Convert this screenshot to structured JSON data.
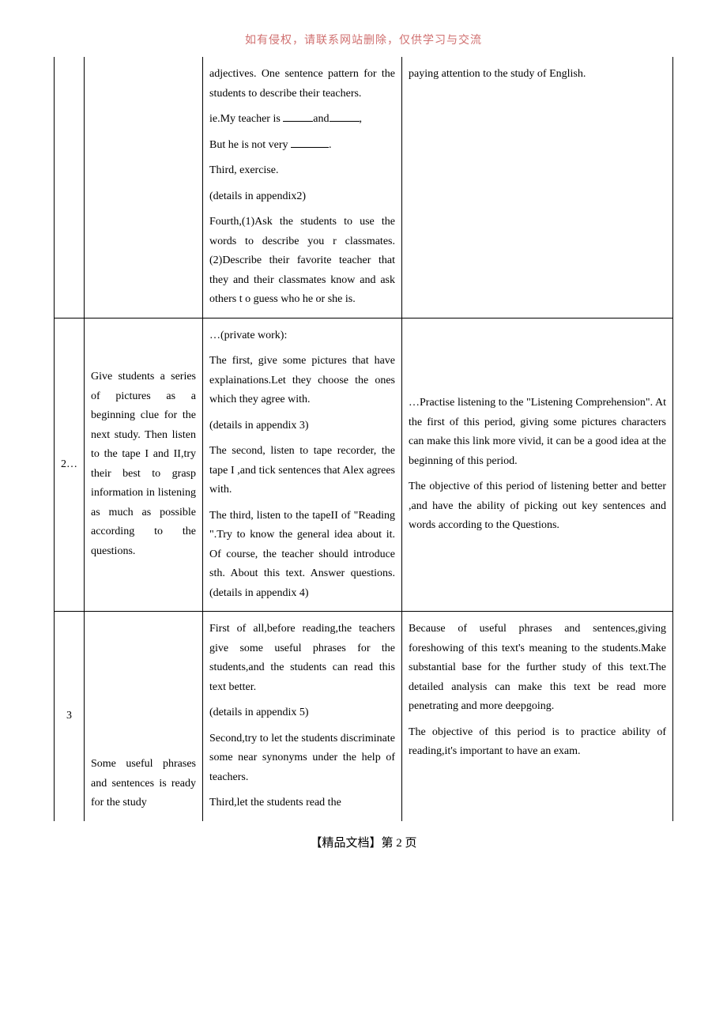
{
  "header_note": "如有侵权，请联系网站删除，仅供学习与交流",
  "footer": "【精品文档】第 2 页",
  "rows": [
    {
      "num": "",
      "left": "",
      "mid_paras": [
        "adjectives. One sentence pattern for the students to describe their teachers.",
        "ie.My teacher is ___and___,",
        "But he is not very ____.",
        "Third, exercise.",
        "(details in appendix2)",
        "Fourth,(1)Ask the students to use the words to describe you r classmates.(2)Describe their favorite teacher that they and their classmates know and ask others t o guess who he or she is."
      ],
      "right_paras": [
        "paying attention to the study of English."
      ]
    },
    {
      "num": "2…",
      "left": "Give students a series of pictures as a beginning clue  for the next study. Then listen to the tape I and II,try their best to grasp information in listening as much as possible according to the questions.",
      "mid_paras": [
        "…(private work):",
        "The first, give some pictures that have explainations.Let they choose the ones which they agree with.",
        "(details in appendix 3)",
        "The second, listen to tape recorder, the tape I ,and tick sentences that Alex agrees with.",
        "The third, listen to the tapeII of \"Reading \".Try to know the general idea about it. Of course, the teacher should introduce sth. About this text. Answer questions.(details in appendix 4)"
      ],
      "right_paras": [
        "…Practise listening to the \"Listening Comprehension\". At the first of this period, giving some pictures characters can make this link more vivid, it can be a good idea at the beginning of this period.",
        "   The objective of this period of listening better and better ,and have the ability of picking out key sentences and words according to the Questions."
      ]
    },
    {
      "num": "3",
      "left": "Some useful phrases and sentences is ready for the study",
      "mid_paras": [
        "First of all,before reading,the teachers give some useful phrases for the students,and the students can read this text better.",
        "(details in appendix 5)",
        "Second,try to let the students discriminate some near synonyms under the help of teachers.",
        "Third,let the students read the"
      ],
      "right_paras": [
        "Because of useful phrases and sentences,giving foreshowing of this text's meaning to the students.Make substantial base for the further study of this text.The detailed analysis can make this text be read more penetrating and more deepgoing.",
        "The objective of this period is to practice ability of reading,it's important to have an exam."
      ]
    }
  ]
}
